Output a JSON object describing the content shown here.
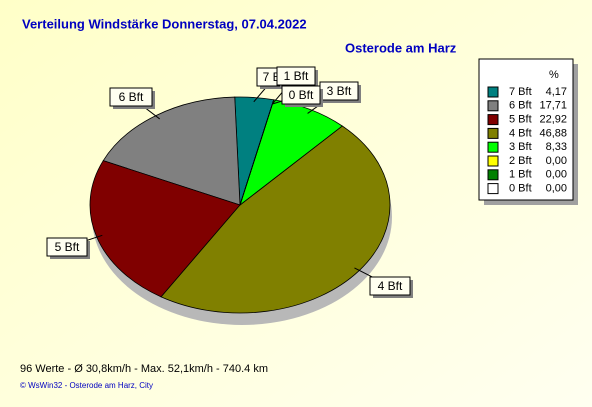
{
  "chart_data": {
    "type": "pie",
    "title": "Verteilung Windstärke  Donnerstag, 07.04.2022",
    "subtitle": "Osterode am Harz",
    "legend_header": "%",
    "categories": [
      "7 Bft",
      "6 Bft",
      "5 Bft",
      "4 Bft",
      "3 Bft",
      "2 Bft",
      "1 Bft",
      "0 Bft"
    ],
    "values": [
      4.17,
      17.71,
      22.92,
      46.88,
      8.33,
      0.0,
      0.0,
      0.0
    ],
    "value_labels": [
      "4,17",
      "17,71",
      "22,92",
      "46,88",
      "8,33",
      "0,00",
      "0,00",
      "0,00"
    ],
    "colors": [
      "#008080",
      "#808080",
      "#800000",
      "#808000",
      "#00ff00",
      "#ffff00",
      "#008000",
      "#ffffff"
    ],
    "legend": "right",
    "footer": "96 Werte   -   Ø 30,8km/h   -   Max. 52,1km/h   -   740.4 km",
    "credit": "© WsWin32  -  Osterode am Harz, City"
  }
}
